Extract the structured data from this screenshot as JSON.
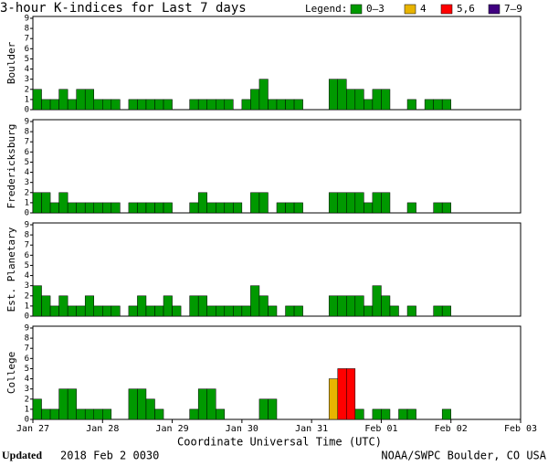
{
  "header": {
    "title": "3-hour K-indices for Last 7 days",
    "legend_label": "Legend:",
    "legend": [
      {
        "label": "0–3",
        "color": "#009900"
      },
      {
        "label": "4",
        "color": "#e8b400"
      },
      {
        "label": "5,6",
        "color": "#ff0000"
      },
      {
        "label": "7–9",
        "color": "#400080"
      }
    ]
  },
  "x_axis": {
    "label": "Coordinate Universal Time (UTC)",
    "ticks": [
      "Jan 27",
      "Jan 28",
      "Jan 29",
      "Jan 30",
      "Jan 31",
      "Feb 01",
      "Feb 02",
      "Feb 03"
    ]
  },
  "footer": {
    "updated_label": "Updated",
    "updated_text": "2018 Feb  2 0030",
    "source": "NOAA/SWPC Boulder, CO USA"
  },
  "chart_data": [
    {
      "type": "bar",
      "title": "Boulder",
      "ylim": [
        0,
        9
      ],
      "yticks": [
        0,
        1,
        2,
        3,
        4,
        5,
        6,
        7,
        8,
        9
      ],
      "values": [
        2,
        1,
        1,
        2,
        1,
        2,
        2,
        1,
        1,
        1,
        0,
        1,
        1,
        1,
        1,
        1,
        0,
        0,
        1,
        1,
        1,
        1,
        1,
        0,
        1,
        2,
        3,
        1,
        1,
        1,
        1,
        0,
        0,
        0,
        3,
        3,
        2,
        2,
        1,
        2,
        2,
        0,
        0,
        1,
        0,
        1,
        1,
        1,
        0,
        0,
        0,
        0,
        0,
        0,
        0,
        0
      ]
    },
    {
      "type": "bar",
      "title": "Fredericksburg",
      "ylim": [
        0,
        9
      ],
      "yticks": [
        0,
        1,
        2,
        3,
        4,
        5,
        6,
        7,
        8,
        9
      ],
      "values": [
        2,
        2,
        1,
        2,
        1,
        1,
        1,
        1,
        1,
        1,
        0,
        1,
        1,
        1,
        1,
        1,
        0,
        0,
        1,
        2,
        1,
        1,
        1,
        1,
        0,
        2,
        2,
        0,
        1,
        1,
        1,
        0,
        0,
        0,
        2,
        2,
        2,
        2,
        1,
        2,
        2,
        0,
        0,
        1,
        0,
        0,
        1,
        1,
        0,
        0,
        0,
        0,
        0,
        0,
        0,
        0
      ]
    },
    {
      "type": "bar",
      "title": "Est. Planetary",
      "ylim": [
        0,
        9
      ],
      "yticks": [
        0,
        1,
        2,
        3,
        4,
        5,
        6,
        7,
        8,
        9
      ],
      "values": [
        3,
        2,
        1,
        2,
        1,
        1,
        2,
        1,
        1,
        1,
        0,
        1,
        2,
        1,
        1,
        2,
        1,
        0,
        2,
        2,
        1,
        1,
        1,
        1,
        1,
        3,
        2,
        1,
        0,
        1,
        1,
        0,
        0,
        0,
        2,
        2,
        2,
        2,
        1,
        3,
        2,
        1,
        0,
        1,
        0,
        0,
        1,
        1,
        0,
        0,
        0,
        0,
        0,
        0,
        0,
        0
      ]
    },
    {
      "type": "bar",
      "title": "College",
      "ylim": [
        0,
        9
      ],
      "yticks": [
        0,
        1,
        2,
        3,
        4,
        5,
        6,
        7,
        8,
        9
      ],
      "values": [
        2,
        1,
        1,
        3,
        3,
        1,
        1,
        1,
        1,
        0,
        0,
        3,
        3,
        2,
        1,
        0,
        0,
        0,
        1,
        3,
        3,
        1,
        0,
        0,
        0,
        0,
        2,
        2,
        0,
        0,
        0,
        0,
        0,
        0,
        4,
        5,
        5,
        1,
        0,
        1,
        1,
        0,
        1,
        1,
        0,
        0,
        0,
        1,
        0,
        0,
        0,
        0,
        0,
        0,
        0,
        0
      ]
    }
  ]
}
